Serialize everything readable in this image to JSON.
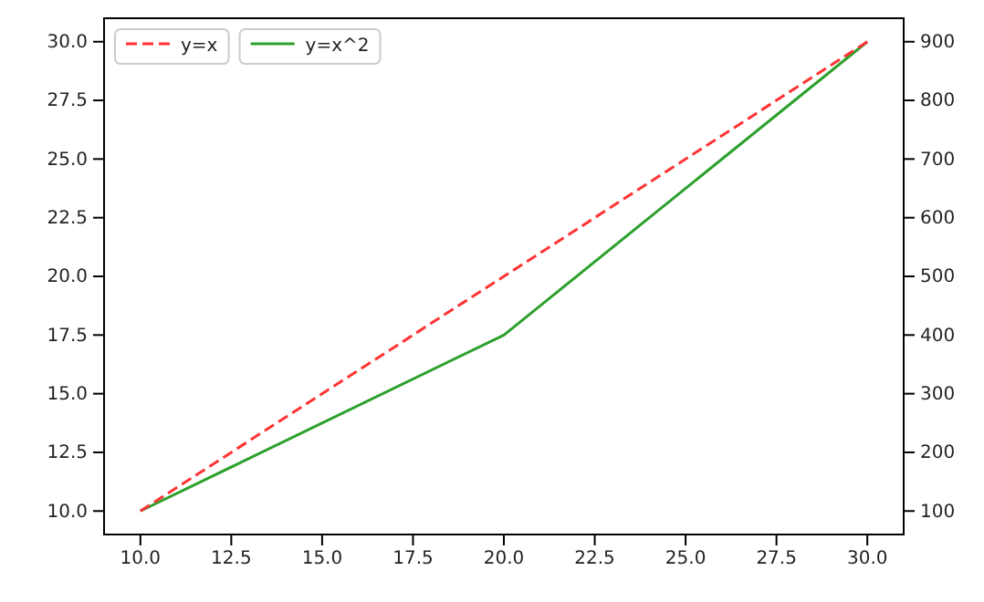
{
  "chart_data": {
    "type": "line",
    "x": [
      10,
      20,
      30
    ],
    "series": [
      {
        "name": "y=x",
        "color": "#ff3333",
        "values": [
          10,
          20,
          30
        ],
        "line_style": "dashed"
      },
      {
        "name": "y=x^2",
        "color": "#2ca02c",
        "values": [
          100,
          400,
          900
        ],
        "axis": "y2",
        "line_style": "solid"
      }
    ],
    "xlim": [
      9,
      31
    ],
    "xticks": [
      {
        "value": 10,
        "label": "10.0"
      },
      {
        "value": 12.5,
        "label": "12.5"
      },
      {
        "value": 15,
        "label": "15.0"
      },
      {
        "value": 17.5,
        "label": "17.5"
      },
      {
        "value": 20,
        "label": "20.0"
      },
      {
        "value": 22.5,
        "label": "22.5"
      },
      {
        "value": 25,
        "label": "25.0"
      },
      {
        "value": 27.5,
        "label": "27.5"
      },
      {
        "value": 30,
        "label": "30.0"
      }
    ],
    "ylim": [
      9,
      31
    ],
    "yticks": [
      {
        "value": 10,
        "label": "10.0"
      },
      {
        "value": 12.5,
        "label": "12.5"
      },
      {
        "value": 15,
        "label": "15.0"
      },
      {
        "value": 17.5,
        "label": "17.5"
      },
      {
        "value": 20,
        "label": "20.0"
      },
      {
        "value": 22.5,
        "label": "22.5"
      },
      {
        "value": 25,
        "label": "25.0"
      },
      {
        "value": 27.5,
        "label": "27.5"
      },
      {
        "value": 30,
        "label": "30.0"
      }
    ],
    "y2lim": [
      60,
      940
    ],
    "y2ticks": [
      100,
      200,
      300,
      400,
      500,
      600,
      700,
      800,
      900
    ],
    "legend": "top left",
    "grid": false
  }
}
